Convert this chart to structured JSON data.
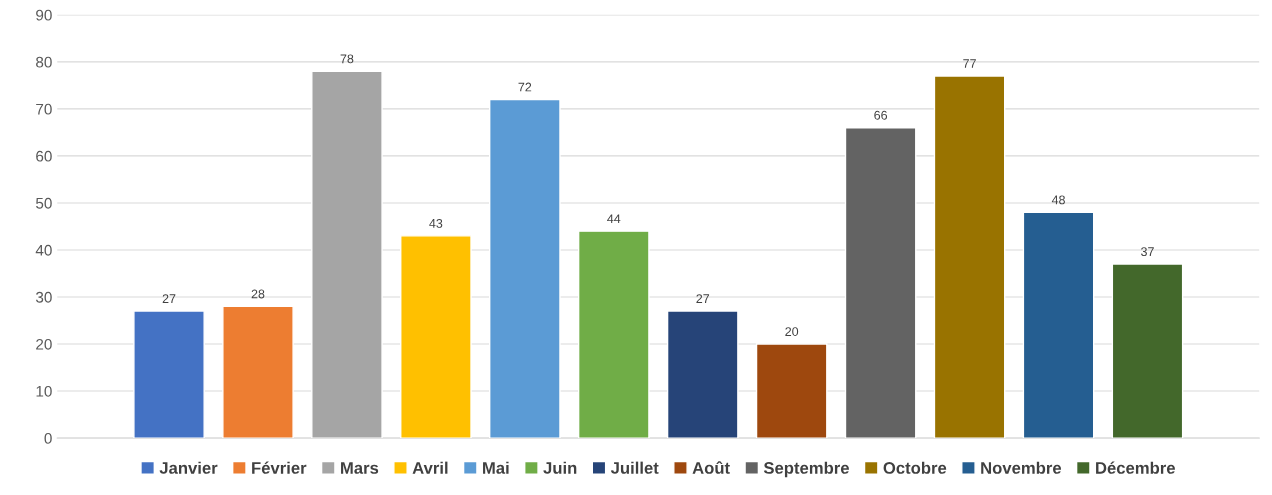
{
  "chart_data": {
    "type": "bar",
    "categories": [
      null
    ],
    "series": [
      {
        "name": "Janvier",
        "color": "#4472c4",
        "values": [
          27
        ]
      },
      {
        "name": "Février",
        "color": "#ed7d31",
        "values": [
          28
        ]
      },
      {
        "name": "Mars",
        "color": "#a5a5a5",
        "values": [
          78
        ]
      },
      {
        "name": "Avril",
        "color": "#ffc000",
        "values": [
          43
        ]
      },
      {
        "name": "Mai",
        "color": "#5b9bd5",
        "values": [
          72
        ]
      },
      {
        "name": "Juin",
        "color": "#70ad47",
        "values": [
          44
        ]
      },
      {
        "name": "Juillet",
        "color": "#264478",
        "values": [
          27
        ]
      },
      {
        "name": "Août",
        "color": "#9e480e",
        "values": [
          20
        ]
      },
      {
        "name": "Septembre",
        "color": "#636363",
        "values": [
          66
        ]
      },
      {
        "name": "Octobre",
        "color": "#997300",
        "values": [
          77
        ]
      },
      {
        "name": "Novembre",
        "color": "#255e91",
        "values": [
          48
        ]
      },
      {
        "name": "Décembre",
        "color": "#43682b",
        "values": [
          37
        ]
      }
    ],
    "ylim": [
      0,
      90
    ],
    "yticks": [
      0,
      10,
      20,
      30,
      40,
      50,
      60,
      70,
      80,
      90
    ],
    "grid": "y",
    "legend": "bottom",
    "data_labels": true
  }
}
